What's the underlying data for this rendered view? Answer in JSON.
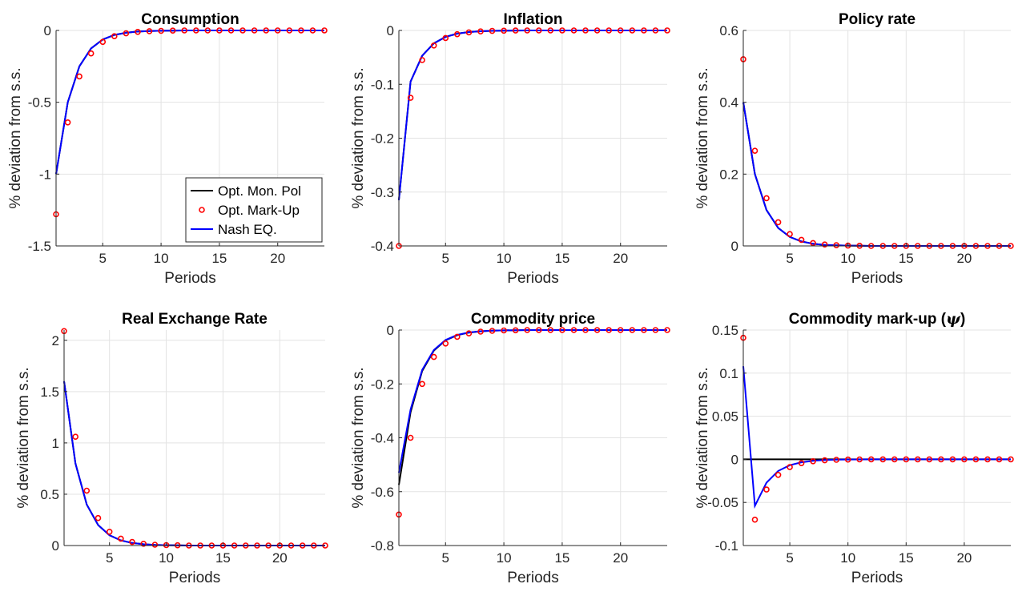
{
  "figure": {
    "ylabel_text": "% deviation from s.s.",
    "xlabel_text": "Periods"
  },
  "legend": {
    "panel_index": 0,
    "location": "bottom-right",
    "entries": [
      {
        "label": "Opt. Mon. Pol",
        "style": "line",
        "color": "#000000"
      },
      {
        "label": "Opt. Mark-Up",
        "style": "marker",
        "color": "#ff0000"
      },
      {
        "label": "Nash EQ.",
        "style": "line",
        "color": "#0000ff"
      }
    ]
  },
  "chart_data": [
    {
      "type": "line",
      "title": "Consumption",
      "xlabel": "Periods",
      "ylabel": "% deviation from s.s.",
      "xlim": [
        1,
        24
      ],
      "ylim": [
        -1.5,
        0
      ],
      "xticks": [
        5,
        10,
        15,
        20
      ],
      "yticks": [
        -1.5,
        -1,
        -0.5,
        0
      ],
      "ytick_labels": [
        "-1.5",
        "-1",
        "-0.5",
        "0"
      ],
      "grid": true,
      "x": [
        1,
        2,
        3,
        4,
        5,
        6,
        7,
        8,
        9,
        10,
        11,
        12,
        13,
        14,
        15,
        16,
        17,
        18,
        19,
        20,
        21,
        22,
        23,
        24
      ],
      "series": [
        {
          "name": "Opt. Mon. Pol",
          "style": "line",
          "color": "#000000",
          "values": [
            -1.0,
            -0.5,
            -0.25,
            -0.125,
            -0.063,
            -0.031,
            -0.016,
            -0.008,
            -0.004,
            -0.002,
            -0.001,
            0,
            0,
            0,
            0,
            0,
            0,
            0,
            0,
            0,
            0,
            0,
            0,
            0
          ]
        },
        {
          "name": "Opt. Mark-Up",
          "style": "marker",
          "color": "#ff0000",
          "values": [
            -1.28,
            -0.64,
            -0.32,
            -0.16,
            -0.08,
            -0.04,
            -0.02,
            -0.01,
            -0.005,
            -0.003,
            -0.001,
            0,
            0,
            0,
            0,
            0,
            0,
            0,
            0,
            0,
            0,
            0,
            0,
            0
          ]
        },
        {
          "name": "Nash EQ.",
          "style": "line",
          "color": "#0000ff",
          "values": [
            -1.0,
            -0.5,
            -0.25,
            -0.125,
            -0.063,
            -0.031,
            -0.016,
            -0.008,
            -0.004,
            -0.002,
            -0.001,
            0,
            0,
            0,
            0,
            0,
            0,
            0,
            0,
            0,
            0,
            0,
            0,
            0
          ]
        }
      ]
    },
    {
      "type": "line",
      "title": "Inflation",
      "xlabel": "Periods",
      "ylabel": "% deviation from s.s.",
      "xlim": [
        1,
        24
      ],
      "ylim": [
        -0.4,
        0
      ],
      "xticks": [
        5,
        10,
        15,
        20
      ],
      "yticks": [
        -0.4,
        -0.3,
        -0.2,
        -0.1,
        0
      ],
      "ytick_labels": [
        "-0.4",
        "-0.3",
        "-0.2",
        "-0.1",
        "0"
      ],
      "grid": true,
      "x": [
        1,
        2,
        3,
        4,
        5,
        6,
        7,
        8,
        9,
        10,
        11,
        12,
        13,
        14,
        15,
        16,
        17,
        18,
        19,
        20,
        21,
        22,
        23,
        24
      ],
      "series": [
        {
          "name": "Opt. Mon. Pol",
          "style": "line",
          "color": "#000000",
          "values": [
            -0.315,
            -0.095,
            -0.047,
            -0.024,
            -0.012,
            -0.006,
            -0.003,
            -0.0015,
            -0.0008,
            -0.0004,
            -0.0002,
            0,
            0,
            0,
            0,
            0,
            0,
            0,
            0,
            0,
            0,
            0,
            0,
            0
          ]
        },
        {
          "name": "Opt. Mark-Up",
          "style": "marker",
          "color": "#ff0000",
          "values": [
            -0.4,
            -0.125,
            -0.055,
            -0.028,
            -0.014,
            -0.007,
            -0.0035,
            -0.0018,
            -0.0009,
            -0.0005,
            -0.0002,
            0,
            0,
            0,
            0,
            0,
            0,
            0,
            0,
            0,
            0,
            0,
            0,
            0
          ]
        },
        {
          "name": "Nash EQ.",
          "style": "line",
          "color": "#0000ff",
          "values": [
            -0.315,
            -0.095,
            -0.047,
            -0.024,
            -0.012,
            -0.006,
            -0.003,
            -0.0015,
            -0.0008,
            -0.0004,
            -0.0002,
            0,
            0,
            0,
            0,
            0,
            0,
            0,
            0,
            0,
            0,
            0,
            0,
            0
          ]
        }
      ]
    },
    {
      "type": "line",
      "title": "Policy rate",
      "xlabel": "Periods",
      "ylabel": "% deviation from s.s.",
      "xlim": [
        1,
        24
      ],
      "ylim": [
        0,
        0.6
      ],
      "xticks": [
        5,
        10,
        15,
        20
      ],
      "yticks": [
        0,
        0.2,
        0.4,
        0.6
      ],
      "ytick_labels": [
        "0",
        "0.2",
        "0.4",
        "0.6"
      ],
      "grid": true,
      "x": [
        1,
        2,
        3,
        4,
        5,
        6,
        7,
        8,
        9,
        10,
        11,
        12,
        13,
        14,
        15,
        16,
        17,
        18,
        19,
        20,
        21,
        22,
        23,
        24
      ],
      "series": [
        {
          "name": "Opt. Mon. Pol",
          "style": "line",
          "color": "#000000",
          "values": [
            0.4,
            0.2,
            0.1,
            0.05,
            0.025,
            0.0125,
            0.006,
            0.003,
            0.0015,
            0.0008,
            0.0004,
            0,
            0,
            0,
            0,
            0,
            0,
            0,
            0,
            0,
            0,
            0,
            0,
            0
          ]
        },
        {
          "name": "Opt. Mark-Up",
          "style": "marker",
          "color": "#ff0000",
          "values": [
            0.52,
            0.265,
            0.133,
            0.066,
            0.033,
            0.017,
            0.008,
            0.004,
            0.002,
            0.001,
            0.0005,
            0,
            0,
            0,
            0,
            0,
            0,
            0,
            0,
            0,
            0,
            0,
            0,
            0
          ]
        },
        {
          "name": "Nash EQ.",
          "style": "line",
          "color": "#0000ff",
          "values": [
            0.4,
            0.2,
            0.1,
            0.05,
            0.025,
            0.0125,
            0.006,
            0.003,
            0.0015,
            0.0008,
            0.0004,
            0,
            0,
            0,
            0,
            0,
            0,
            0,
            0,
            0,
            0,
            0,
            0,
            0
          ]
        }
      ]
    },
    {
      "type": "line",
      "title": "Real Exchange Rate",
      "xlabel": "Periods",
      "ylabel": "% deviation from s.s.",
      "xlim": [
        1,
        24
      ],
      "ylim": [
        0,
        2.1
      ],
      "xticks": [
        5,
        10,
        15,
        20
      ],
      "yticks": [
        0,
        0.5,
        1,
        1.5,
        2
      ],
      "ytick_labels": [
        "0",
        "0.5",
        "1",
        "1.5",
        "2"
      ],
      "grid": true,
      "x": [
        1,
        2,
        3,
        4,
        5,
        6,
        7,
        8,
        9,
        10,
        11,
        12,
        13,
        14,
        15,
        16,
        17,
        18,
        19,
        20,
        21,
        22,
        23,
        24
      ],
      "series": [
        {
          "name": "Opt. Mon. Pol",
          "style": "line",
          "color": "#000000",
          "values": [
            1.6,
            0.8,
            0.4,
            0.2,
            0.1,
            0.05,
            0.025,
            0.0125,
            0.006,
            0.003,
            0.0015,
            0,
            0,
            0,
            0,
            0,
            0,
            0,
            0,
            0,
            0,
            0,
            0,
            0
          ]
        },
        {
          "name": "Opt. Mark-Up",
          "style": "marker",
          "color": "#ff0000",
          "values": [
            2.09,
            1.06,
            0.535,
            0.268,
            0.134,
            0.067,
            0.034,
            0.017,
            0.008,
            0.004,
            0.002,
            0,
            0,
            0,
            0,
            0,
            0,
            0,
            0,
            0,
            0,
            0,
            0,
            0
          ]
        },
        {
          "name": "Nash EQ.",
          "style": "line",
          "color": "#0000ff",
          "values": [
            1.6,
            0.8,
            0.4,
            0.2,
            0.1,
            0.05,
            0.025,
            0.0125,
            0.006,
            0.003,
            0.0015,
            0,
            0,
            0,
            0,
            0,
            0,
            0,
            0,
            0,
            0,
            0,
            0,
            0
          ]
        }
      ]
    },
    {
      "type": "line",
      "title": "Commodity price",
      "xlabel": "Periods",
      "ylabel": "% deviation from s.s.",
      "xlim": [
        1,
        24
      ],
      "ylim": [
        -0.8,
        0
      ],
      "xticks": [
        5,
        10,
        15,
        20
      ],
      "yticks": [
        -0.8,
        -0.6,
        -0.4,
        -0.2,
        0
      ],
      "ytick_labels": [
        "-0.8",
        "-0.6",
        "-0.4",
        "-0.2",
        "0"
      ],
      "grid": true,
      "x": [
        1,
        2,
        3,
        4,
        5,
        6,
        7,
        8,
        9,
        10,
        11,
        12,
        13,
        14,
        15,
        16,
        17,
        18,
        19,
        20,
        21,
        22,
        23,
        24
      ],
      "series": [
        {
          "name": "Opt. Mon. Pol",
          "style": "line",
          "color": "#000000",
          "values": [
            -0.575,
            -0.305,
            -0.152,
            -0.076,
            -0.038,
            -0.019,
            -0.0095,
            -0.0048,
            -0.0024,
            -0.0012,
            -0.0006,
            0,
            0,
            0,
            0,
            0,
            0,
            0,
            0,
            0,
            0,
            0,
            0,
            0
          ]
        },
        {
          "name": "Opt. Mark-Up",
          "style": "marker",
          "color": "#ff0000",
          "values": [
            -0.685,
            -0.4,
            -0.2,
            -0.1,
            -0.05,
            -0.025,
            -0.0125,
            -0.006,
            -0.003,
            -0.0015,
            -0.0008,
            0,
            0,
            0,
            0,
            0,
            0,
            0,
            0,
            0,
            0,
            0,
            0,
            0
          ]
        },
        {
          "name": "Nash EQ.",
          "style": "line",
          "color": "#0000ff",
          "values": [
            -0.53,
            -0.295,
            -0.148,
            -0.074,
            -0.037,
            -0.018,
            -0.009,
            -0.0046,
            -0.0023,
            -0.0011,
            -0.0006,
            0,
            0,
            0,
            0,
            0,
            0,
            0,
            0,
            0,
            0,
            0,
            0,
            0
          ]
        }
      ]
    },
    {
      "type": "line",
      "title": "Commodity mark-up (",
      "title_symbol": "ψ",
      "title_suffix": ")",
      "xlabel": "Periods",
      "ylabel": "% deviation from s.s.",
      "xlim": [
        1,
        24
      ],
      "ylim": [
        -0.1,
        0.15
      ],
      "xticks": [
        5,
        10,
        15,
        20
      ],
      "yticks": [
        -0.1,
        -0.05,
        0,
        0.05,
        0.1,
        0.15
      ],
      "ytick_labels": [
        "-0.1",
        "-0.05",
        "0",
        "0.05",
        "0.1",
        "0.15"
      ],
      "grid": true,
      "x": [
        1,
        2,
        3,
        4,
        5,
        6,
        7,
        8,
        9,
        10,
        11,
        12,
        13,
        14,
        15,
        16,
        17,
        18,
        19,
        20,
        21,
        22,
        23,
        24
      ],
      "series": [
        {
          "name": "Opt. Mon. Pol",
          "style": "line",
          "color": "#000000",
          "values": [
            0,
            0,
            0,
            0,
            0,
            0,
            0,
            0,
            0,
            0,
            0,
            0,
            0,
            0,
            0,
            0,
            0,
            0,
            0,
            0,
            0,
            0,
            0,
            0
          ]
        },
        {
          "name": "Opt. Mark-Up",
          "style": "marker",
          "color": "#ff0000",
          "values": [
            0.141,
            -0.07,
            -0.035,
            -0.018,
            -0.009,
            -0.0045,
            -0.0022,
            -0.0011,
            -0.0006,
            -0.0003,
            -0.0001,
            0,
            0,
            0,
            0,
            0,
            0,
            0,
            0,
            0,
            0,
            0,
            0,
            0
          ]
        },
        {
          "name": "Nash EQ.",
          "style": "line",
          "color": "#0000ff",
          "values": [
            0.108,
            -0.054,
            -0.027,
            -0.0135,
            -0.0068,
            -0.0034,
            -0.0017,
            -0.0008,
            -0.0004,
            -0.0002,
            -0.0001,
            0,
            0,
            0,
            0,
            0,
            0,
            0,
            0,
            0,
            0,
            0,
            0,
            0
          ]
        }
      ]
    }
  ]
}
